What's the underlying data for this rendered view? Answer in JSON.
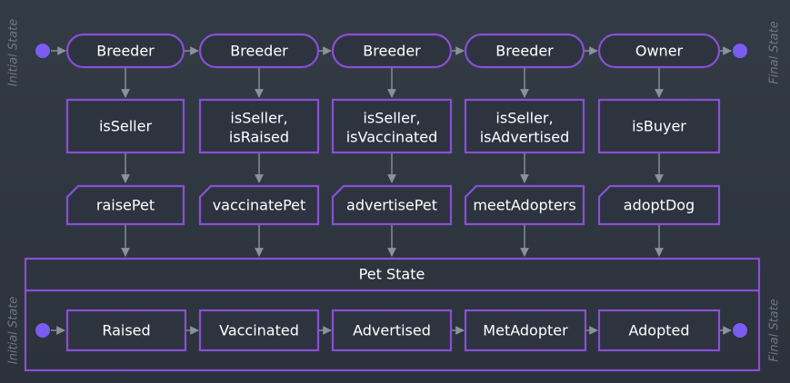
{
  "side_labels": {
    "initial": "Initial State",
    "final": "Final State"
  },
  "roles": [
    "Breeder",
    "Breeder",
    "Breeder",
    "Breeder",
    "Owner"
  ],
  "checks": [
    [
      "isSeller"
    ],
    [
      "isSeller,",
      "isRaised"
    ],
    [
      "isSeller,",
      "isVaccinated"
    ],
    [
      "isSeller,",
      "isAdvertised"
    ],
    [
      "isBuyer"
    ]
  ],
  "actions": [
    "raisePet",
    "vaccinatePet",
    "advertisePet",
    "meetAdopters",
    "adoptDog"
  ],
  "pet_state": {
    "title": "Pet State",
    "states": [
      "Raised",
      "Vaccinated",
      "Advertised",
      "MetAdopter",
      "Adopted"
    ]
  },
  "colors": {
    "border": "#8a4fd6",
    "dot": "#7b5cf0",
    "arrow": "#8a929c",
    "background": "#2f3640"
  }
}
